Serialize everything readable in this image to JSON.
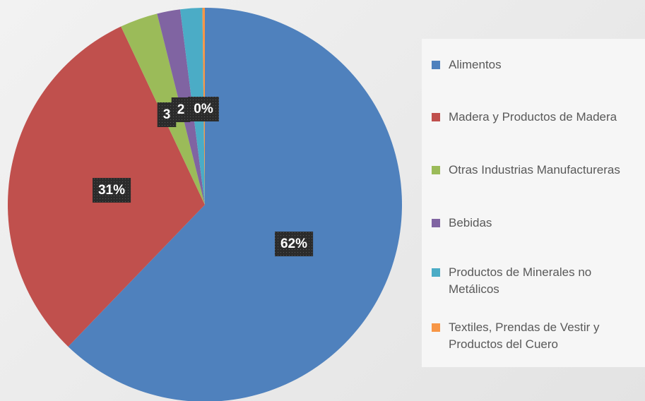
{
  "chart_data": {
    "type": "pie",
    "categories": [
      "Alimentos",
      "Madera y Productos de Madera",
      "Otras Industrias Manufactureras",
      "Bebidas",
      "Productos de Minerales no Metálicos",
      "Textiles, Prendas de Vestir y Productos del Cuero"
    ],
    "values": [
      62.2,
      30.8,
      3.1,
      1.9,
      1.8,
      0.2
    ],
    "value_labels": [
      "62%",
      "31%",
      "3",
      "2",
      null,
      "0%"
    ],
    "colors": [
      "#4f81bd",
      "#c0504d",
      "#9bbb59",
      "#8064a2",
      "#4bacc6",
      "#f79646"
    ],
    "legend": "right"
  }
}
